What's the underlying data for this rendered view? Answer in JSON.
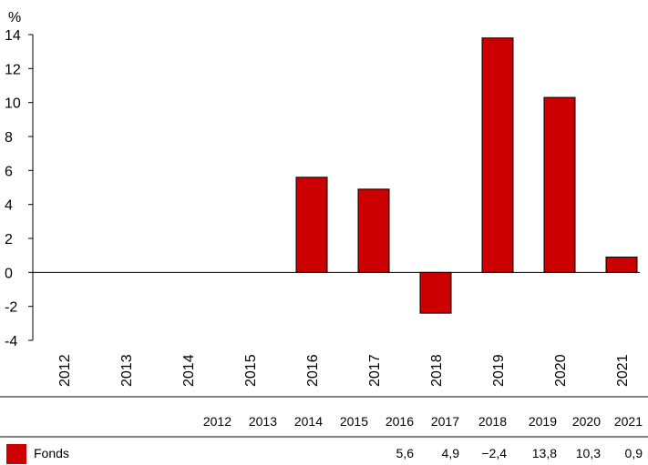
{
  "chart_data": {
    "type": "bar",
    "unit_label": "%",
    "categories": [
      "2012",
      "2013",
      "2014",
      "2015",
      "2016",
      "2017",
      "2018",
      "2019",
      "2020",
      "2021"
    ],
    "series": [
      {
        "name": "Fonds",
        "color": "#cc0000",
        "values": [
          null,
          null,
          null,
          null,
          5.6,
          4.9,
          -2.4,
          13.8,
          10.3,
          0.9
        ]
      }
    ],
    "ylim": [
      -4,
      14
    ],
    "yticks": [
      "14",
      "12",
      "10",
      "8",
      "6",
      "4",
      "2",
      "0",
      "-2",
      "-4"
    ],
    "ytick_values": [
      14,
      12,
      10,
      8,
      6,
      4,
      2,
      0,
      -2,
      -4
    ],
    "table": {
      "header": [
        "2012",
        "2013",
        "2014",
        "2015",
        "2016",
        "2017",
        "2018",
        "2019",
        "2020",
        "2021"
      ],
      "rows": [
        {
          "label": "Fonds",
          "cells": [
            "",
            "",
            "",
            "",
            "5,6",
            "4,9",
            "−2,4",
            "13,8",
            "10,3",
            "0,9"
          ]
        }
      ]
    },
    "grid": false,
    "legend": "table-bottom-left"
  }
}
